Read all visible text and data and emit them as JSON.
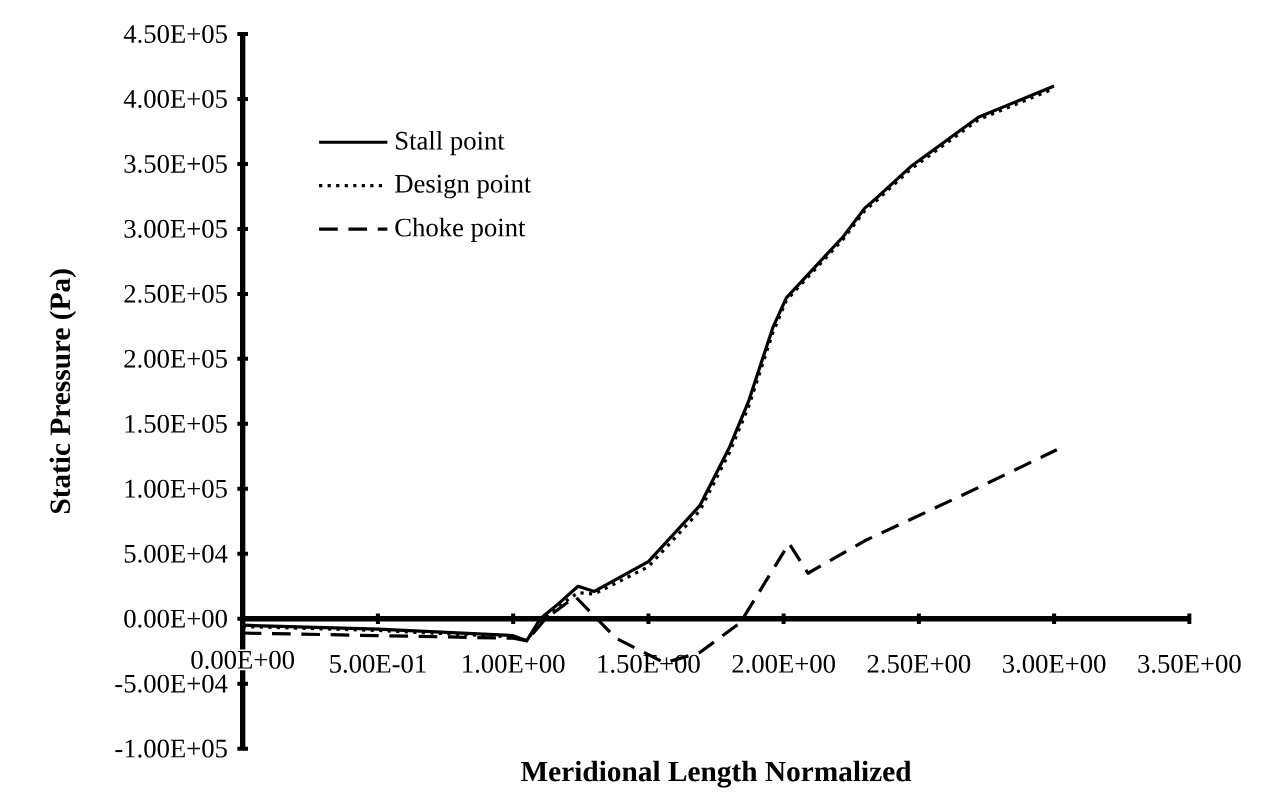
{
  "chart_data": {
    "type": "line",
    "xlabel": "Meridional  Length Normalized",
    "ylabel": "Static Pressure (Pa)",
    "xlim": [
      0,
      3.5
    ],
    "ylim": [
      -100000,
      450000
    ],
    "xticks": [
      {
        "value": 0,
        "label": "0.00E+00"
      },
      {
        "value": 0.5,
        "label": "5.00E-01"
      },
      {
        "value": 1,
        "label": "1.00E+00"
      },
      {
        "value": 1.5,
        "label": "1.50E+00"
      },
      {
        "value": 2,
        "label": "2.00E+00"
      },
      {
        "value": 2.5,
        "label": "2.50E+00"
      },
      {
        "value": 3,
        "label": "3.00E+00"
      },
      {
        "value": 3.5,
        "label": "3.50E+00"
      }
    ],
    "yticks": [
      {
        "value": -100000,
        "label": "-1.00E+05"
      },
      {
        "value": -50000,
        "label": "-5.00E+04"
      },
      {
        "value": 0,
        "label": "0.00E+00"
      },
      {
        "value": 50000,
        "label": "5.00E+04"
      },
      {
        "value": 100000,
        "label": "1.00E+05"
      },
      {
        "value": 150000,
        "label": "1.50E+05"
      },
      {
        "value": 200000,
        "label": "2.00E+05"
      },
      {
        "value": 250000,
        "label": "2.50E+05"
      },
      {
        "value": 300000,
        "label": "3.00E+05"
      },
      {
        "value": 350000,
        "label": "3.50E+05"
      },
      {
        "value": 400000,
        "label": "4.00E+05"
      },
      {
        "value": 450000,
        "label": "4.50E+05"
      }
    ],
    "grid": false,
    "legend": "top left",
    "marker": "none",
    "series": [
      {
        "name": "Stall point",
        "color": "#000000",
        "line_style": "solid",
        "x": [
          0,
          0.5,
          1.0,
          1.05,
          1.1,
          1.17,
          1.24,
          1.3,
          1.5,
          1.69,
          1.8,
          1.87,
          1.96,
          2.01,
          2.22,
          2.3,
          2.35,
          2.47,
          2.72,
          3.0
        ],
        "values": [
          -5000,
          -8000,
          -13000,
          -17000,
          0,
          12000,
          25000,
          21000,
          44000,
          87000,
          132000,
          167000,
          224000,
          247000,
          294000,
          316000,
          325000,
          348000,
          386000,
          410000
        ]
      },
      {
        "name": "Design point",
        "color": "#000000",
        "line_style": "dotted",
        "x": [
          0,
          0.5,
          1.0,
          1.05,
          1.1,
          1.17,
          1.24,
          1.3,
          1.5,
          1.69,
          1.8,
          1.87,
          1.96,
          2.01,
          2.22,
          2.3,
          2.35,
          2.47,
          2.72,
          3.0
        ],
        "values": [
          -6000,
          -9000,
          -14000,
          -17000,
          -2000,
          10000,
          20000,
          19000,
          40000,
          83000,
          128000,
          163000,
          220000,
          245000,
          292000,
          314000,
          323000,
          346000,
          384000,
          408000
        ]
      },
      {
        "name": "Choke point",
        "color": "#000000",
        "line_style": "dashed",
        "x": [
          0,
          0.5,
          1.0,
          1.05,
          1.12,
          1.23,
          1.38,
          1.56,
          1.69,
          1.84,
          2.02,
          2.09,
          2.3,
          2.66,
          3.01
        ],
        "values": [
          -11000,
          -13000,
          -15000,
          -17000,
          0,
          17000,
          -15000,
          -34000,
          -26000,
          -3000,
          58000,
          35000,
          60000,
          95000,
          130000
        ]
      }
    ]
  }
}
